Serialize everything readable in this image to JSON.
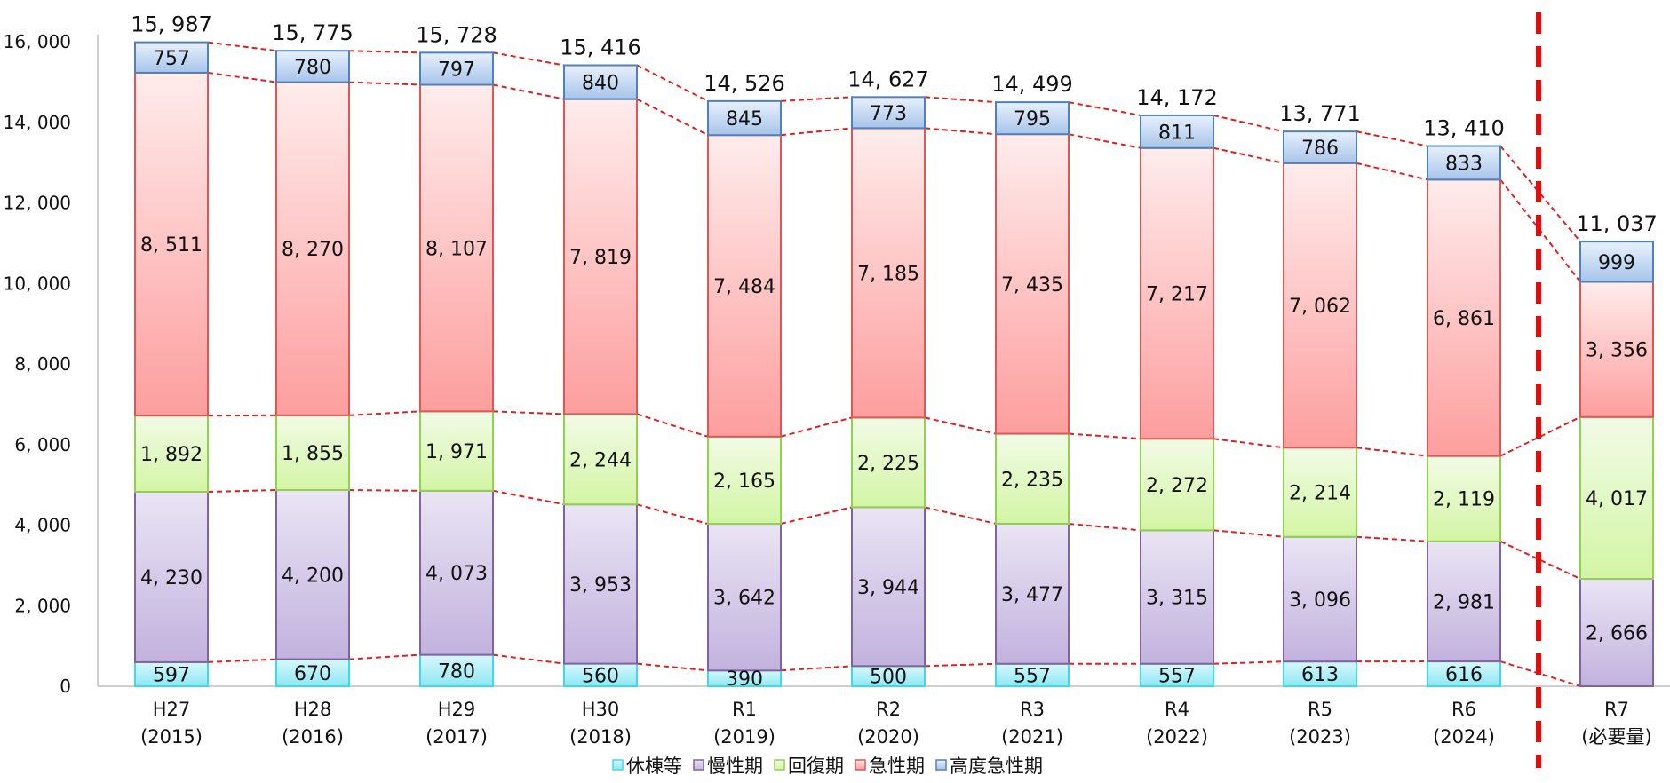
{
  "chart_data": {
    "type": "bar",
    "stacked": true,
    "categories": [
      [
        "H27",
        "(2015)"
      ],
      [
        "H28",
        "(2016)"
      ],
      [
        "H29",
        "(2017)"
      ],
      [
        "H30",
        "(2018)"
      ],
      [
        "R1",
        "(2019)"
      ],
      [
        "R2",
        "(2020)"
      ],
      [
        "R3",
        "(2021)"
      ],
      [
        "R4",
        "(2022)"
      ],
      [
        "R5",
        "(2023)"
      ],
      [
        "R6",
        "(2024)"
      ],
      [
        "R7",
        "(必要量)"
      ]
    ],
    "series": [
      {
        "name": "休棟等",
        "color": "#41d8ec",
        "fill_top": "#d8f8fc",
        "fill_bottom": "#8ee7f3",
        "values": [
          597,
          670,
          780,
          560,
          390,
          500,
          557,
          557,
          613,
          616,
          null
        ],
        "labels": [
          "597",
          "670",
          "780",
          "560",
          "390",
          "500",
          "557",
          "557",
          "613",
          "616",
          ""
        ]
      },
      {
        "name": "慢性期",
        "color": "#8064a2",
        "fill_top": "#eae5f4",
        "fill_bottom": "#c2b2de",
        "values": [
          4230,
          4200,
          4073,
          3953,
          3642,
          3944,
          3477,
          3315,
          3096,
          2981,
          2666
        ],
        "labels": [
          "4, 230",
          "4, 200",
          "4, 073",
          "3, 953",
          "3, 642",
          "3, 944",
          "3, 477",
          "3, 315",
          "3, 096",
          "2, 981",
          "2, 666"
        ]
      },
      {
        "name": "回復期",
        "color": "#92d050",
        "fill_top": "#f2fbe6",
        "fill_bottom": "#d3f5a5",
        "values": [
          1892,
          1855,
          1971,
          2244,
          2165,
          2225,
          2235,
          2272,
          2214,
          2119,
          4017
        ],
        "labels": [
          "1, 892",
          "1, 855",
          "1, 971",
          "2, 244",
          "2, 165",
          "2, 225",
          "2, 235",
          "2, 272",
          "2, 214",
          "2, 119",
          "4, 017"
        ]
      },
      {
        "name": "急性期",
        "color": "#e05656",
        "fill_top": "#ffecec",
        "fill_bottom": "#fd9e9e",
        "values": [
          8511,
          8270,
          8107,
          7819,
          7484,
          7185,
          7435,
          7217,
          7062,
          6861,
          3356
        ],
        "labels": [
          "8, 511",
          "8, 270",
          "8, 107",
          "7, 819",
          "7, 484",
          "7, 185",
          "7, 435",
          "7, 217",
          "7, 062",
          "6, 861",
          "3, 356"
        ]
      },
      {
        "name": "高度急性期",
        "color": "#4f81bd",
        "fill_top": "#e9f1fc",
        "fill_bottom": "#a7c4ea",
        "values": [
          757,
          780,
          797,
          840,
          845,
          773,
          795,
          811,
          786,
          833,
          999
        ],
        "labels": [
          "757",
          "780",
          "797",
          "840",
          "845",
          "773",
          "795",
          "811",
          "786",
          "833",
          "999"
        ]
      }
    ],
    "totals": [
      15987,
      15775,
      15728,
      15416,
      14526,
      14627,
      14499,
      14172,
      13771,
      13410,
      11037
    ],
    "total_labels": [
      "15, 987",
      "15, 775",
      "15, 728",
      "15, 416",
      "14, 526",
      "14, 627",
      "14, 499",
      "14, 172",
      "13, 771",
      "13, 410",
      "11, 037"
    ],
    "ylim": [
      0,
      16000
    ],
    "yticks": [
      0,
      2000,
      4000,
      6000,
      8000,
      10000,
      12000,
      14000,
      16000
    ],
    "ytick_labels": [
      "0",
      "2, 000",
      "4, 000",
      "6, 000",
      "8, 000",
      "10, 000",
      "12, 000",
      "14, 000",
      "16, 000"
    ],
    "grid": false,
    "legend_position": "bottom-center",
    "connector_color": "#e02020",
    "divider_color": "#ff0000",
    "xlabel": "",
    "ylabel": "",
    "title": ""
  }
}
